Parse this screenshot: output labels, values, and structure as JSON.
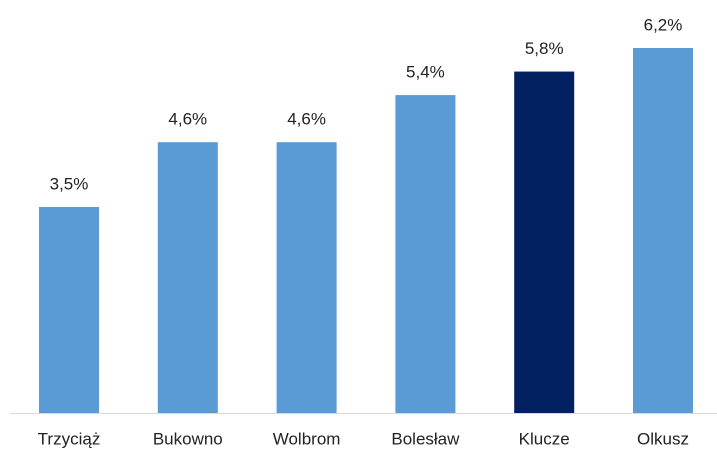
{
  "chart_data": {
    "type": "bar",
    "categories": [
      "Trzyciąż",
      "Bukowno",
      "Wolbrom",
      "Bolesław",
      "Klucze",
      "Olkusz"
    ],
    "values": [
      3.5,
      4.6,
      4.6,
      5.4,
      5.8,
      6.2
    ],
    "value_labels": [
      "3,5%",
      "4,6%",
      "4,6%",
      "5,4%",
      "5,8%",
      "6,2%"
    ],
    "colors": [
      "#5b9bd5",
      "#5b9bd5",
      "#5b9bd5",
      "#5b9bd5",
      "#002060",
      "#5b9bd5"
    ]
  }
}
